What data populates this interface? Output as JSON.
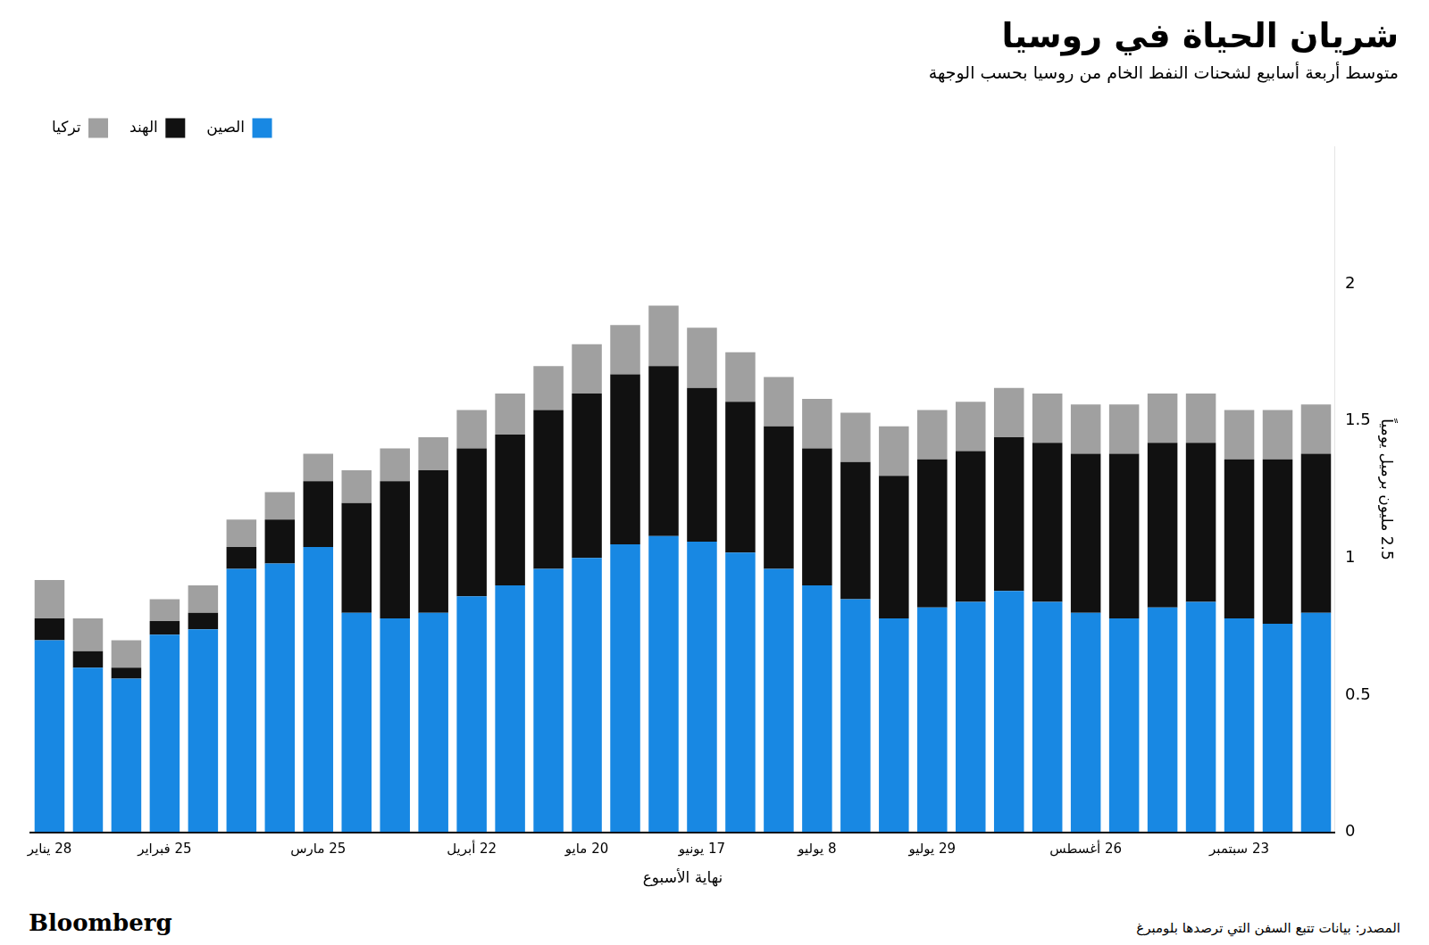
{
  "chart_data": {
    "type": "bar",
    "title": "شريان الحياة في روسيا",
    "subtitle": "متوسط أربعة أسابيع لشحنات النفط الخام من روسيا بحسب الوجهة",
    "xlabel": "نهاية الأسبوع",
    "ylabel": "2.5 مليون برميل يومياً",
    "annotations": [
      "Bloomberg",
      "المصدر:",
      "بيانات تتبع السفن التي ترصدها بلومبرغ"
    ],
    "categories": [
      "28 يناير",
      null,
      null,
      "25 فبراير",
      null,
      null,
      null,
      "25 مارس",
      null,
      null,
      null,
      "22 أبريل",
      null,
      null,
      "20 مايو",
      null,
      null,
      "17 يونيو",
      null,
      null,
      "8 يوليو",
      null,
      null,
      "29 يوليو",
      null,
      null,
      null,
      "26 أغسطس",
      null,
      null,
      null,
      "23 سبتمبر",
      null,
      null
    ],
    "series": [
      {
        "name": "الصين",
        "color": "#1888e3",
        "values": [
          0.7,
          0.6,
          0.56,
          0.72,
          0.74,
          0.96,
          0.98,
          1.04,
          0.8,
          0.78,
          0.8,
          0.86,
          0.9,
          0.96,
          1.0,
          1.05,
          1.08,
          1.06,
          1.02,
          0.96,
          0.9,
          0.85,
          0.78,
          0.82,
          0.84,
          0.88,
          0.84,
          0.8,
          0.78,
          0.82,
          0.84,
          0.78,
          0.76,
          0.8
        ]
      },
      {
        "name": "الهند",
        "color": "#111111",
        "values": [
          0.08,
          0.06,
          0.04,
          0.05,
          0.06,
          0.08,
          0.16,
          0.24,
          0.4,
          0.5,
          0.52,
          0.54,
          0.55,
          0.58,
          0.6,
          0.62,
          0.62,
          0.56,
          0.55,
          0.52,
          0.5,
          0.5,
          0.52,
          0.54,
          0.55,
          0.56,
          0.58,
          0.58,
          0.6,
          0.6,
          0.58,
          0.58,
          0.6,
          0.58
        ]
      },
      {
        "name": "تركيا",
        "color": "#a0a0a0",
        "values": [
          0.14,
          0.12,
          0.1,
          0.08,
          0.1,
          0.1,
          0.1,
          0.1,
          0.12,
          0.12,
          0.12,
          0.14,
          0.15,
          0.16,
          0.18,
          0.18,
          0.22,
          0.22,
          0.18,
          0.18,
          0.18,
          0.18,
          0.18,
          0.18,
          0.18,
          0.18,
          0.18,
          0.18,
          0.18,
          0.18,
          0.18,
          0.18,
          0.18,
          0.18
        ]
      }
    ],
    "stacked": true,
    "ylim": [
      0,
      2.5
    ],
    "yticks": [
      0,
      0.5,
      1,
      1.5,
      2
    ],
    "grid": false,
    "legend": "top"
  }
}
